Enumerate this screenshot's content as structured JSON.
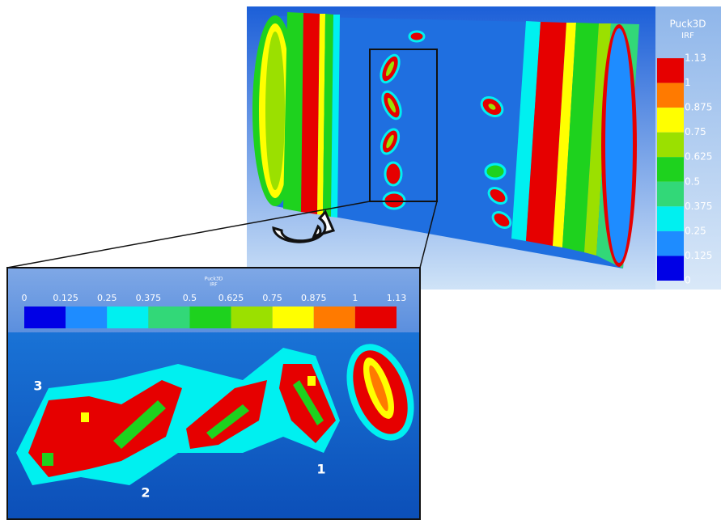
{
  "legend": {
    "title": "Puck3D",
    "subtitle": "IRF",
    "labels": [
      "1.13",
      "1",
      "0.875",
      "0.75",
      "0.625",
      "0.5",
      "0.375",
      "0.25",
      "0.125",
      "0"
    ],
    "colors": [
      "#e60000",
      "#ff7a00",
      "#ffff00",
      "#9be000",
      "#1ed21e",
      "#32d878",
      "#00f0f0",
      "#1e8cff",
      "#0000e6"
    ]
  },
  "inset_legend": {
    "title": "Puck3D",
    "subtitle": "IRF",
    "labels": [
      "0",
      "0.125",
      "0.25",
      "0.375",
      "0.5",
      "0.625",
      "0.75",
      "0.875",
      "1",
      "1.13"
    ],
    "colors": [
      "#0000e6",
      "#1e8cff",
      "#00f0f0",
      "#32d878",
      "#1ed21e",
      "#9be000",
      "#ffff00",
      "#ff7a00",
      "#e60000"
    ]
  },
  "damage_labels": [
    "3",
    "2",
    "1"
  ]
}
